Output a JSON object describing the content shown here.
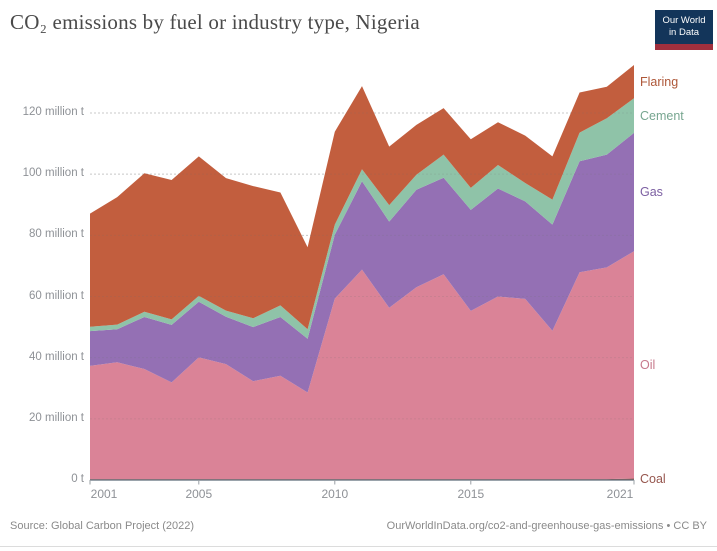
{
  "header": {
    "title": "CO₂ emissions by fuel or industry type, Nigeria"
  },
  "logo": {
    "line1": "Our World",
    "line2": "in Data"
  },
  "chart_data": {
    "type": "area",
    "stacked": true,
    "title": "CO₂ emissions by fuel or industry type, Nigeria",
    "unit": "million t",
    "x": [
      2001,
      2002,
      2003,
      2004,
      2005,
      2006,
      2007,
      2008,
      2009,
      2010,
      2011,
      2012,
      2013,
      2014,
      2015,
      2016,
      2017,
      2018,
      2019,
      2020,
      2021
    ],
    "series": [
      {
        "name": "coal",
        "label": "Coal",
        "color": "#9a5a52",
        "label_color": "#96564e",
        "values": [
          0.3,
          0.3,
          0.3,
          0.3,
          0.3,
          0.3,
          0.3,
          0.3,
          0.3,
          0.3,
          0.3,
          0.3,
          0.3,
          0.3,
          0.3,
          0.3,
          0.3,
          0.3,
          0.3,
          0.3,
          0.5
        ]
      },
      {
        "name": "oil",
        "label": "Oil",
        "color": "#da8397",
        "label_color": "#c7798c",
        "values": [
          37.0,
          38.2,
          36.0,
          31.6,
          39.8,
          37.6,
          32.0,
          33.8,
          28.3,
          59.0,
          68.5,
          56.0,
          62.7,
          67.0,
          55.0,
          59.7,
          58.9,
          48.5,
          67.6,
          69.2,
          74.3
        ]
      },
      {
        "name": "gas",
        "label": "Gas",
        "color": "#9470b4",
        "label_color": "#7c5fa2",
        "values": [
          11.4,
          10.8,
          17.0,
          18.8,
          18.2,
          15.5,
          17.7,
          19.2,
          17.6,
          20.9,
          28.9,
          28.2,
          31.9,
          31.5,
          33.0,
          35.3,
          31.9,
          34.7,
          36.3,
          36.9,
          38.7
        ]
      },
      {
        "name": "cement",
        "label": "Cement",
        "color": "#8fc3a8",
        "label_color": "#77a690",
        "values": [
          1.4,
          1.5,
          1.7,
          1.8,
          1.9,
          2.0,
          2.9,
          3.8,
          3.1,
          3.3,
          3.9,
          5.4,
          4.9,
          7.6,
          7.2,
          7.7,
          6.0,
          8.2,
          9.4,
          11.9,
          11.3
        ]
      },
      {
        "name": "flaring",
        "label": "Flaring",
        "color": "#c25e3e",
        "label_color": "#ae5738",
        "values": [
          37.0,
          41.7,
          45.3,
          45.6,
          45.6,
          43.3,
          43.2,
          36.9,
          26.8,
          30.4,
          27.2,
          19.1,
          16.3,
          15.2,
          15.9,
          14.0,
          15.5,
          14.1,
          13.1,
          10.3,
          10.9
        ]
      }
    ],
    "yticks": [
      {
        "value": 0,
        "label": "0 t"
      },
      {
        "value": 20,
        "label": "20 million t"
      },
      {
        "value": 40,
        "label": "40 million t"
      },
      {
        "value": 60,
        "label": "60 million t"
      },
      {
        "value": 80,
        "label": "80 million t"
      },
      {
        "value": 100,
        "label": "100 million t"
      },
      {
        "value": 120,
        "label": "120 million t"
      }
    ],
    "xticks": [
      2001,
      2005,
      2010,
      2015,
      2021
    ],
    "ylim": [
      0,
      120
    ],
    "xlim": [
      2001,
      2021
    ],
    "grid": "dashed",
    "legend_position": "right"
  },
  "footer": {
    "source": "Source: Global Carbon Project (2022)",
    "link": "OurWorldInData.org/co2-and-greenhouse-gas-emissions • CC BY"
  }
}
